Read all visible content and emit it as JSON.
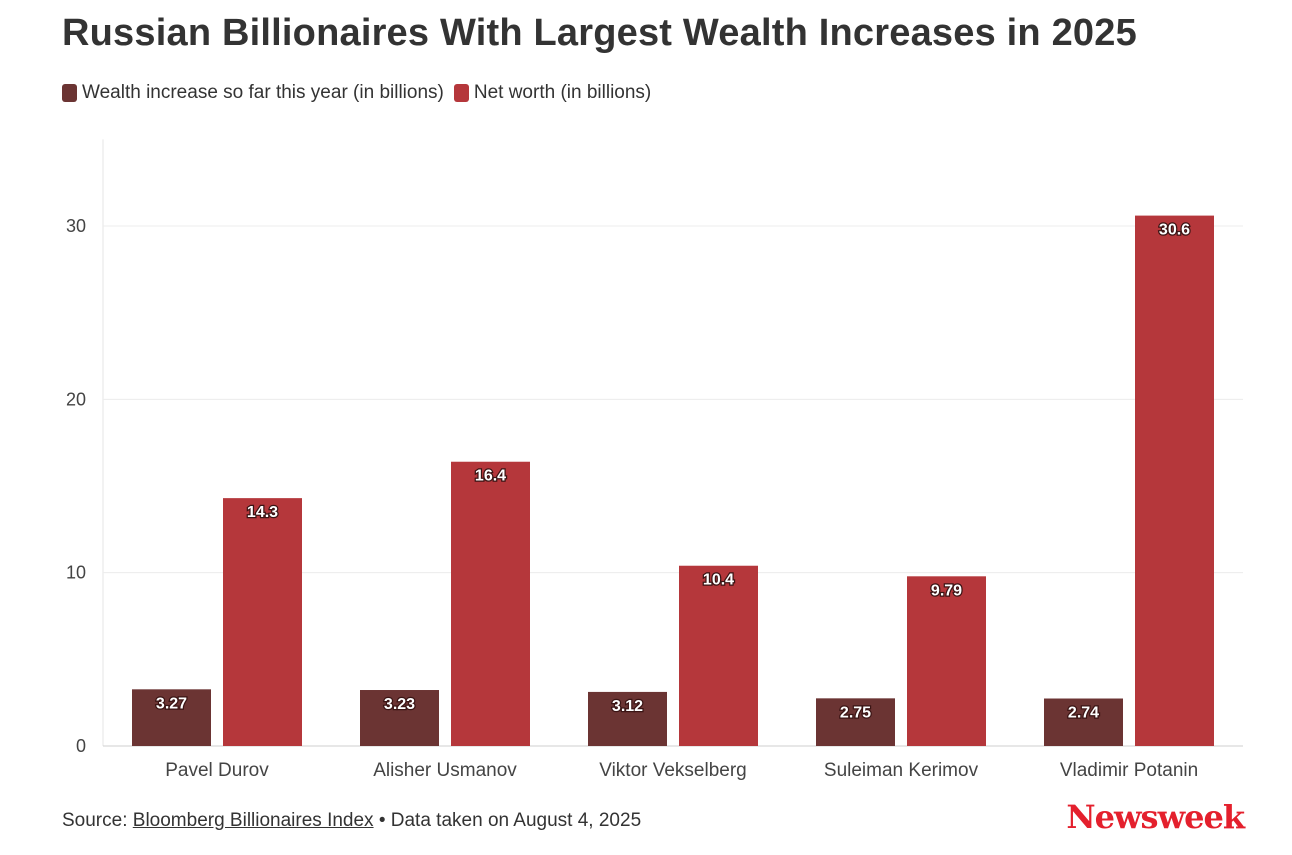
{
  "chart_data": {
    "type": "bar",
    "title": "Russian Billionaires With Largest Wealth Increases in 2025",
    "categories": [
      "Pavel Durov",
      "Alisher Usmanov",
      "Viktor Vekselberg",
      "Suleiman Kerimov",
      "Vladimir Potanin"
    ],
    "series": [
      {
        "name": "Wealth increase so far this year (in billions)",
        "values": [
          3.27,
          3.23,
          3.12,
          2.75,
          2.74
        ],
        "color": "#6b3433"
      },
      {
        "name": "Net worth (in billions)",
        "values": [
          14.3,
          16.4,
          10.4,
          9.79,
          30.6
        ],
        "color": "#b5373b"
      }
    ],
    "value_labels": [
      [
        "3.27",
        "3.23",
        "3.12",
        "2.75",
        "2.74"
      ],
      [
        "14.3",
        "16.4",
        "10.4",
        "9.79",
        "30.6"
      ]
    ],
    "ylim": [
      0,
      35
    ],
    "yticks": [
      0,
      10,
      20,
      30
    ],
    "grid": true,
    "legend_position": "top-left"
  },
  "footer": {
    "source_prefix": "Source: ",
    "source_link": "Bloomberg Billionaires Index",
    "source_suffix": " • Data taken on August 4, 2025"
  },
  "brand": {
    "logo_text": "Newsweek",
    "color": "#e4202d"
  }
}
